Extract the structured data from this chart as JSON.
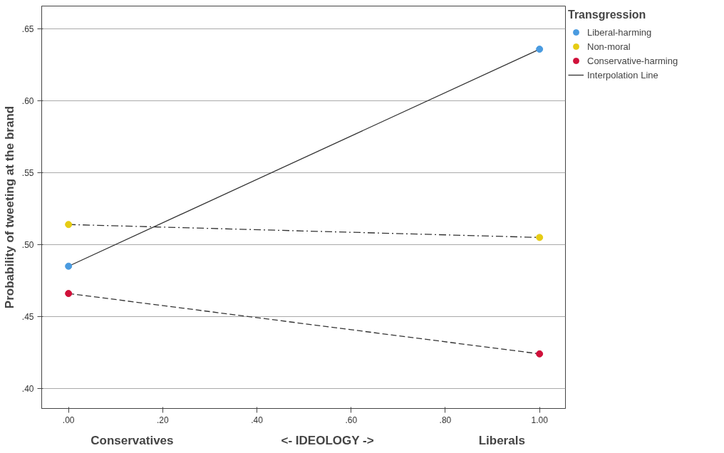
{
  "chart_data": {
    "type": "line",
    "xlabel": "<- IDEOLOGY ->",
    "ylabel": "Probability of tweeting at the brand",
    "legend_title": "Transgression",
    "annotations": [
      "Conservatives",
      "Liberals",
      "Interpolation Line"
    ],
    "x": [
      0,
      1
    ],
    "series": [
      {
        "name": "Liberal-harming",
        "color": "#4a9be0",
        "line_style": "solid",
        "values": [
          0.485,
          0.636
        ]
      },
      {
        "name": "Non-moral",
        "color": "#e6cc14",
        "line_style": "dashdot",
        "values": [
          0.514,
          0.505
        ]
      },
      {
        "name": "Conservative-harming",
        "color": "#d0103a",
        "line_style": "dashed",
        "values": [
          0.466,
          0.424
        ]
      }
    ],
    "marker": "circle",
    "xlim": [
      -0.057,
      1.055
    ],
    "ylim": [
      0.386,
      0.666
    ],
    "xticks": [
      {
        "value": 0,
        "label": ".00"
      },
      {
        "value": 0.2,
        "label": ".20"
      },
      {
        "value": 0.4,
        "label": ".40"
      },
      {
        "value": 0.6,
        "label": ".60"
      },
      {
        "value": 0.8,
        "label": ".80"
      },
      {
        "value": 1,
        "label": "1.00"
      }
    ],
    "yticks": [
      {
        "value": 0.4,
        "label": ".40"
      },
      {
        "value": 0.45,
        "label": ".45"
      },
      {
        "value": 0.5,
        "label": ".50"
      },
      {
        "value": 0.55,
        "label": ".55"
      },
      {
        "value": 0.6,
        "label": ".60"
      },
      {
        "value": 0.65,
        "label": ".65"
      }
    ],
    "grid": "y",
    "legend": "top right"
  }
}
